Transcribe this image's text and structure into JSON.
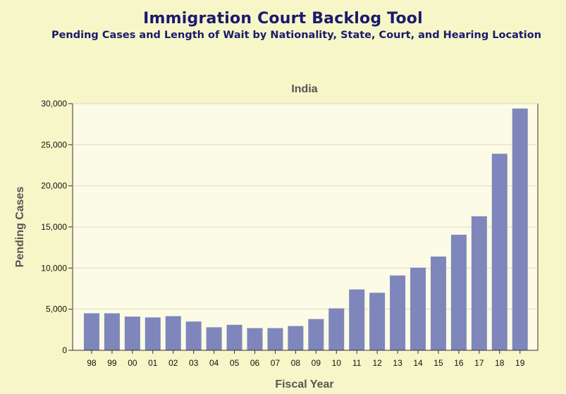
{
  "header": {
    "title": "Immigration Court Backlog Tool",
    "subtitle": "Pending Cases and Length of Wait by Nationality, State, Court, and Hearing Location"
  },
  "colors": {
    "page_background": "#f6f6c8",
    "plot_background": "#fbfbe6",
    "bar": "#7f86bc",
    "title_text": "#1a1a6e",
    "gridline": "#dcdcc0"
  },
  "chart_data": {
    "type": "bar",
    "title": "India",
    "xlabel": "Fiscal Year",
    "ylabel": "Pending Cases",
    "categories": [
      "98",
      "99",
      "00",
      "01",
      "02",
      "03",
      "04",
      "05",
      "06",
      "07",
      "08",
      "09",
      "10",
      "11",
      "12",
      "13",
      "14",
      "15",
      "16",
      "17",
      "18",
      "19"
    ],
    "values": [
      4500,
      4500,
      4100,
      4000,
      4150,
      3500,
      2800,
      3100,
      2700,
      2700,
      2950,
      3800,
      5100,
      7400,
      7000,
      9100,
      10050,
      11400,
      14050,
      16300,
      23900,
      29400
    ],
    "ylim": [
      0,
      30000
    ],
    "yticks": [
      0,
      5000,
      10000,
      15000,
      20000,
      25000,
      30000
    ],
    "ytick_labels": [
      "0",
      "5,000",
      "10,000",
      "15,000",
      "20,000",
      "25,000",
      "30,000"
    ],
    "grid": true
  }
}
